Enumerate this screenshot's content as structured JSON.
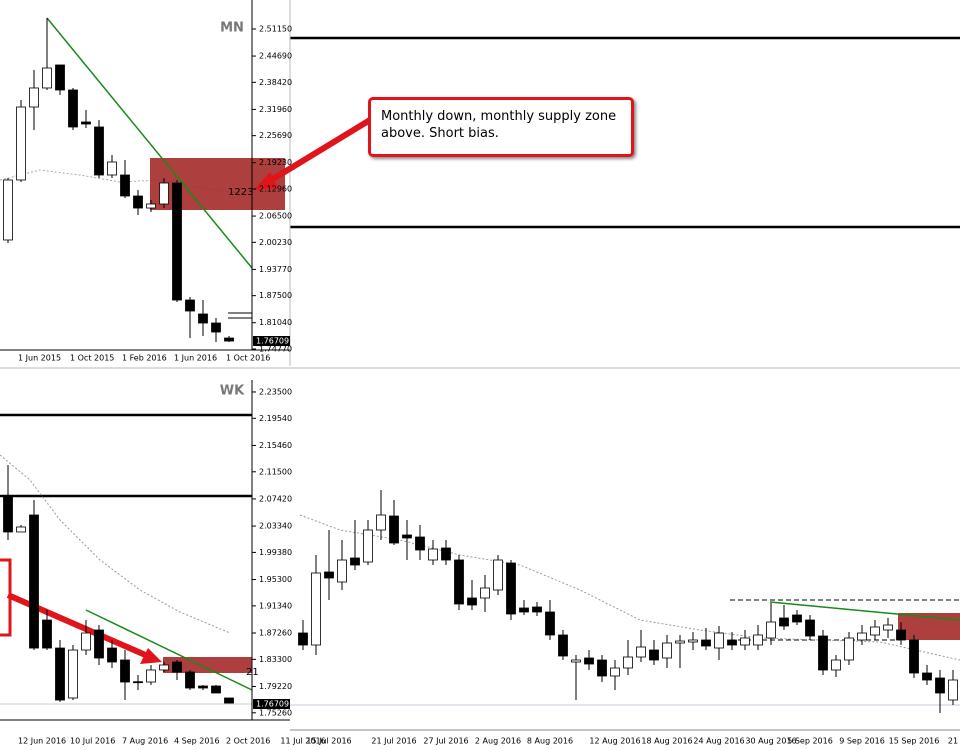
{
  "chart_data": [
    {
      "type": "candlestick",
      "label": "MN",
      "current_price_label": "1.76709",
      "zone_label": "1223",
      "categories": [
        null,
        "1 Jun 2015",
        null,
        null,
        null,
        "1 Oct 2015",
        null,
        null,
        null,
        "1 Feb 2016",
        null,
        null,
        null,
        "1 Jun 2016",
        null,
        null,
        null,
        "1 Oct 2016"
      ],
      "open": [
        2.0079,
        2.1511,
        2.3253,
        2.3707,
        2.4256,
        2.3659,
        2.2895,
        2.2776,
        2.163,
        2.163,
        2.1129,
        2.0842,
        2.0938,
        2.1439,
        1.8646,
        1.8312,
        1.8097,
        1.7739
      ],
      "high": [
        2.1557,
        2.342,
        2.4136,
        2.5378,
        2.4256,
        2.3707,
        2.3182,
        2.2943,
        2.2107,
        2.1988,
        2.1272,
        2.1033,
        2.1557,
        2.1511,
        1.8718,
        1.8646,
        1.8217,
        1.7787
      ],
      "low": [
        2.0007,
        2.1463,
        2.2704,
        2.3659,
        2.354,
        2.2704,
        2.2752,
        2.1557,
        2.1557,
        2.1081,
        2.0675,
        2.0747,
        2.0842,
        1.8598,
        1.7739,
        1.7787,
        1.7644,
        1.7644
      ],
      "close": [
        2.1511,
        2.3253,
        2.3707,
        2.4184,
        2.3659,
        2.2776,
        2.2847,
        2.163,
        2.194,
        2.1129,
        2.0842,
        2.0938,
        2.1439,
        1.8646,
        1.8384,
        1.8097,
        1.7882,
        1.7667
      ],
      "ylim": [
        1.7453,
        2.5807
      ],
      "yticks": [
        {
          "value": 2.5115,
          "label": "2.51150"
        },
        {
          "value": 2.4469,
          "label": "2.44690"
        },
        {
          "value": 2.3842,
          "label": "2.38420"
        },
        {
          "value": 2.3196,
          "label": "2.31960"
        },
        {
          "value": 2.2569,
          "label": "2.25690"
        },
        {
          "value": 2.1923,
          "label": "2.19230"
        },
        {
          "value": 2.1296,
          "label": "2.12960"
        },
        {
          "value": 2.065,
          "label": "2.06500"
        },
        {
          "value": 2.0023,
          "label": "2.00230"
        },
        {
          "value": 1.9377,
          "label": "1.93770"
        },
        {
          "value": 1.875,
          "label": "1.87500"
        },
        {
          "value": 1.8104,
          "label": "1.81040"
        },
        {
          "value": 1.7477,
          "label": "1.74770"
        }
      ]
    },
    {
      "type": "candlestick",
      "label": "WK",
      "current_price_label": "1.76709",
      "zone_label": "21",
      "categories": [
        null,
        "12 Jun 2016",
        null,
        null,
        null,
        "10 Jul 2016",
        null,
        null,
        null,
        "7 Aug 2016",
        null,
        null,
        null,
        "4 Sep 2016",
        null,
        null,
        null,
        "2 Oct 2016"
      ],
      "open": [
        2.0771,
        2.0245,
        2.05,
        1.8921,
        1.85,
        1.7749,
        1.847,
        1.8771,
        1.85,
        1.832,
        1.7994,
        1.7989,
        1.817,
        1.829,
        1.8139,
        1.7929,
        1.7929,
        1.7749
      ],
      "high": [
        2.1252,
        2.035,
        2.0726,
        1.9072,
        1.8621,
        1.8545,
        1.8921,
        1.8846,
        1.8621,
        1.847,
        1.8094,
        1.8245,
        1.829,
        1.832,
        1.817,
        1.7944,
        1.7944,
        1.7749
      ],
      "low": [
        2.0124,
        2.0245,
        1.847,
        1.847,
        1.7688,
        1.7718,
        1.8395,
        1.8245,
        1.82,
        1.7718,
        1.7869,
        1.7944,
        1.8139,
        1.8019,
        1.7869,
        1.7869,
        1.7824,
        1.7673
      ],
      "close": [
        2.0245,
        2.032,
        1.85,
        1.85,
        1.7718,
        1.847,
        1.8726,
        1.835,
        1.829,
        1.7989,
        1.7989,
        1.817,
        1.8245,
        1.8139,
        1.7899,
        1.7899,
        1.7824,
        1.7673
      ],
      "ylim": [
        1.7418,
        2.253
      ],
      "yticks": [
        {
          "value": 2.235,
          "label": "2.23500"
        },
        {
          "value": 2.1954,
          "label": "2.19540"
        },
        {
          "value": 2.1546,
          "label": "2.15460"
        },
        {
          "value": 2.115,
          "label": "2.11500"
        },
        {
          "value": 2.0742,
          "label": "2.07420"
        },
        {
          "value": 2.0334,
          "label": "2.03340"
        },
        {
          "value": 1.9938,
          "label": "1.99380"
        },
        {
          "value": 1.953,
          "label": "1.95300"
        },
        {
          "value": 1.9134,
          "label": "1.91340"
        },
        {
          "value": 1.8726,
          "label": "1.87260"
        },
        {
          "value": 1.833,
          "label": "1.83300"
        },
        {
          "value": 1.7922,
          "label": "1.79220"
        },
        {
          "value": 1.7526,
          "label": "1.75260"
        }
      ]
    },
    {
      "type": "candlestick",
      "categories": [
        "11 Jul 2016",
        null,
        "15 Jul 2016",
        null,
        null,
        null,
        null,
        "21 Jul 2016",
        null,
        null,
        null,
        "27 Jul 2016",
        null,
        null,
        null,
        "2 Aug 2016",
        null,
        null,
        null,
        "8 Aug 2016",
        null,
        null,
        null,
        null,
        "12 Aug 2016",
        null,
        null,
        null,
        "18 Aug 2016",
        null,
        null,
        null,
        "24 Aug 2016",
        null,
        null,
        null,
        "30 Aug 2016",
        null,
        null,
        "5 Sep 2016",
        null,
        null,
        null,
        "9 Sep 2016",
        null,
        null,
        null,
        "15 Sep 2016",
        null,
        null,
        "21"
      ],
      "open": [
        1.7936,
        1.784,
        1.8424,
        1.8344,
        1.8536,
        1.8504,
        1.876,
        1.8872,
        1.872,
        1.8704,
        1.852,
        1.8616,
        1.852,
        1.8216,
        1.8216,
        1.828,
        1.8496,
        1.8136,
        1.8144,
        1.8104,
        1.792,
        1.7704,
        1.7736,
        1.772,
        1.7592,
        1.7656,
        1.7744,
        1.78,
        1.7736,
        1.7856,
        1.7864,
        1.788,
        1.7816,
        1.788,
        1.784,
        1.784,
        1.7896,
        1.8056,
        1.808,
        1.804,
        1.7912,
        1.764,
        1.772,
        1.788,
        1.792,
        1.796,
        1.796,
        1.788,
        1.7616,
        1.7576,
        1.74
      ],
      "high": [
        1.804,
        1.856,
        1.876,
        1.868,
        1.884,
        1.884,
        1.908,
        1.9,
        1.884,
        1.88,
        1.868,
        1.868,
        1.856,
        1.836,
        1.84,
        1.856,
        1.852,
        1.82,
        1.8184,
        1.82,
        1.796,
        1.776,
        1.78,
        1.776,
        1.772,
        1.788,
        1.796,
        1.788,
        1.792,
        1.792,
        1.7944,
        1.7976,
        1.7992,
        1.7944,
        1.796,
        1.8,
        1.8176,
        1.816,
        1.812,
        1.808,
        1.796,
        1.776,
        1.7944,
        1.8,
        1.804,
        1.8056,
        1.8024,
        1.792,
        1.768,
        1.764,
        1.764
      ],
      "low": [
        1.78,
        1.776,
        1.82,
        1.828,
        1.844,
        1.848,
        1.868,
        1.864,
        1.852,
        1.852,
        1.848,
        1.848,
        1.812,
        1.812,
        1.8104,
        1.824,
        1.804,
        1.808,
        1.8072,
        1.788,
        1.772,
        1.74,
        1.764,
        1.7544,
        1.748,
        1.76,
        1.7704,
        1.768,
        1.7656,
        1.7656,
        1.78,
        1.78,
        1.772,
        1.78,
        1.78,
        1.78,
        1.784,
        1.796,
        1.8,
        1.788,
        1.76,
        1.7584,
        1.768,
        1.784,
        1.788,
        1.7896,
        1.784,
        1.7576,
        1.752,
        1.7296,
        1.736
      ],
      "close": [
        1.784,
        1.8416,
        1.8376,
        1.852,
        1.848,
        1.876,
        1.888,
        1.8656,
        1.8696,
        1.86,
        1.8608,
        1.852,
        1.8168,
        1.816,
        1.8296,
        1.852,
        1.8088,
        1.8104,
        1.8104,
        1.792,
        1.7752,
        1.772,
        1.7688,
        1.7592,
        1.7656,
        1.7744,
        1.7824,
        1.772,
        1.7856,
        1.7872,
        1.788,
        1.7832,
        1.7936,
        1.784,
        1.7896,
        1.792,
        1.8024,
        1.7992,
        1.8024,
        1.7912,
        1.764,
        1.772,
        1.7896,
        1.7936,
        1.7984,
        1.8,
        1.788,
        1.7616,
        1.756,
        1.7456,
        1.756
      ],
      "ylim": [
        1.716,
        2.0
      ]
    }
  ],
  "callout": "Monthly down, monthly supply zone above. Short bias."
}
